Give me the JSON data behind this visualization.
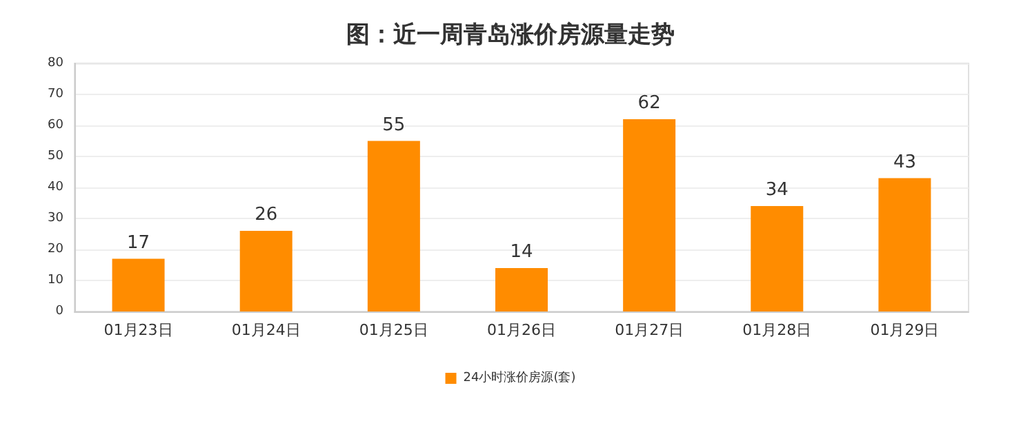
{
  "chart_data": {
    "type": "bar",
    "title": "图：近一周青岛涨价房源量走势",
    "categories": [
      "01月23日",
      "01月24日",
      "01月25日",
      "01月26日",
      "01月27日",
      "01月28日",
      "01月29日"
    ],
    "series": [
      {
        "name": "24小时涨价房源(套)",
        "color": "#ff8c00",
        "values": [
          17,
          26,
          55,
          14,
          62,
          34,
          43
        ]
      }
    ],
    "ylim": [
      0,
      80
    ],
    "yticks": [
      0,
      10,
      20,
      30,
      40,
      50,
      60,
      70,
      80
    ],
    "grid": "y",
    "legend": "bottom",
    "data_labels": true
  }
}
